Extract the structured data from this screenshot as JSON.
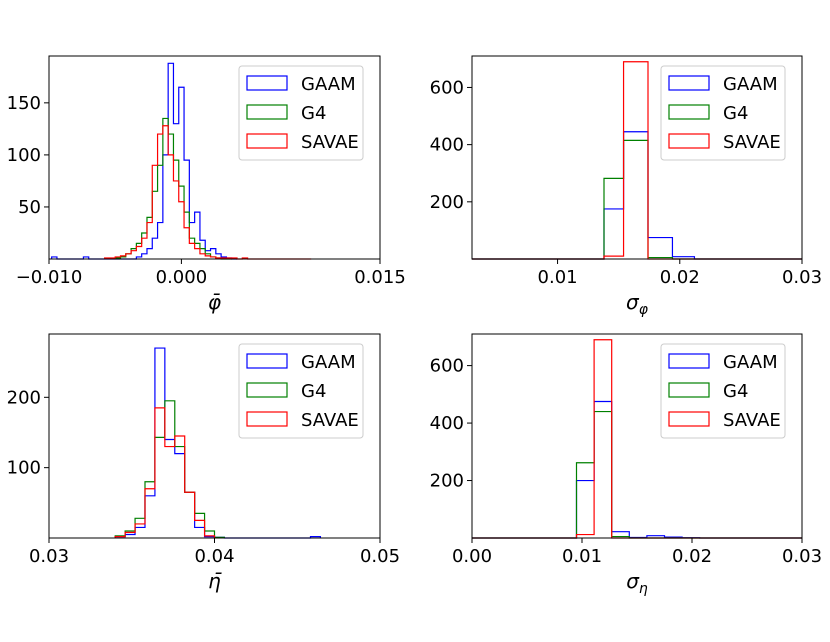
{
  "chart_data": [
    {
      "type": "histogram",
      "xlabel": "φ̄",
      "xlim": [
        -0.01,
        0.015
      ],
      "ylim": [
        0,
        195
      ],
      "xticks": [
        -0.01,
        0.0,
        0.015
      ],
      "xtick_labels": [
        "−0.010",
        "0.000",
        "0.015"
      ],
      "yticks": [
        50,
        100,
        150
      ],
      "ytick_labels": [
        "50",
        "100",
        "150"
      ],
      "legend_position": "top-right",
      "series": [
        {
          "name": "GAAM",
          "color": "#0000ff",
          "edges": [
            -0.0098,
            -0.0094,
            -0.009,
            -0.0086,
            -0.0082,
            -0.0078,
            -0.0074,
            -0.007,
            -0.0066,
            -0.0062,
            -0.0058,
            -0.0054,
            -0.005,
            -0.0046,
            -0.0042,
            -0.0038,
            -0.0034,
            -0.003,
            -0.0026,
            -0.0022,
            -0.0018,
            -0.0014,
            -0.001,
            -0.0006,
            -0.0002,
            0.0002,
            0.0006,
            0.001,
            0.0014,
            0.0018,
            0.0022,
            0.0026,
            0.003,
            0.0034,
            0.0038,
            0.0042
          ],
          "counts": [
            2,
            0,
            0,
            0,
            0,
            0,
            2,
            0,
            0,
            0,
            0,
            0,
            0,
            0,
            0,
            0,
            2,
            5,
            10,
            20,
            35,
            100,
            188,
            130,
            165,
            95,
            35,
            45,
            18,
            8,
            10,
            5,
            2,
            1,
            0
          ]
        },
        {
          "name": "G4",
          "color": "#008000",
          "edges": [
            -0.005,
            -0.0046,
            -0.0042,
            -0.0038,
            -0.0034,
            -0.003,
            -0.0026,
            -0.0022,
            -0.0018,
            -0.0014,
            -0.001,
            -0.0006,
            -0.0002,
            0.0002,
            0.0006,
            0.001,
            0.0014,
            0.0018,
            0.0022,
            0.0026,
            0.003,
            0.0034,
            0.0038
          ],
          "counts": [
            1,
            2,
            5,
            10,
            15,
            25,
            40,
            65,
            90,
            135,
            120,
            95,
            70,
            45,
            20,
            15,
            10,
            5,
            2,
            1,
            0,
            0
          ]
        },
        {
          "name": "SAVAE",
          "color": "#ff0000",
          "edges": [
            -0.0058,
            -0.0054,
            -0.005,
            -0.0046,
            -0.0042,
            -0.0038,
            -0.0034,
            -0.003,
            -0.0026,
            -0.0022,
            -0.0018,
            -0.0014,
            -0.001,
            -0.0006,
            -0.0002,
            0.0002,
            0.0006,
            0.001,
            0.0014,
            0.0018,
            0.0022,
            0.0026,
            0.003,
            0.0034,
            0.0038,
            0.0042,
            0.0046,
            0.005,
            0.0054,
            0.0058,
            0.0062,
            0.0066,
            0.007,
            0.0074,
            0.0078,
            0.0082,
            0.0086,
            0.009,
            0.0094,
            0.0098
          ],
          "counts": [
            1,
            1,
            2,
            3,
            5,
            8,
            12,
            20,
            35,
            90,
            120,
            128,
            100,
            75,
            55,
            30,
            15,
            10,
            5,
            3,
            2,
            1,
            1,
            1,
            1,
            0,
            1,
            0,
            0,
            0,
            0,
            0,
            0,
            0,
            0,
            0,
            0,
            0,
            0
          ]
        }
      ]
    },
    {
      "type": "histogram",
      "xlabel": "σφ",
      "xlabel_main": "σ",
      "xlabel_sub": "φ",
      "xlim": [
        0.003,
        0.03
      ],
      "ylim": [
        0,
        710
      ],
      "xticks": [
        0.01,
        0.02,
        0.03
      ],
      "xtick_labels": [
        "0.01",
        "0.02",
        "0.03"
      ],
      "yticks": [
        200,
        400,
        600
      ],
      "ytick_labels": [
        "200",
        "400",
        "600"
      ],
      "legend_position": "top-right",
      "series": [
        {
          "name": "GAAM",
          "color": "#0000ff",
          "edges": [
            0.003,
            0.0138,
            0.0154,
            0.0174,
            0.0194,
            0.0212,
            0.03
          ],
          "counts": [
            0,
            175,
            445,
            75,
            8,
            0
          ]
        },
        {
          "name": "G4",
          "color": "#008000",
          "edges": [
            0.003,
            0.0138,
            0.0154,
            0.0174,
            0.0194,
            0.03
          ],
          "counts": [
            0,
            282,
            415,
            5,
            0
          ]
        },
        {
          "name": "SAVAE",
          "color": "#ff0000",
          "edges": [
            0.003,
            0.0138,
            0.0154,
            0.0174,
            0.03
          ],
          "counts": [
            0,
            10,
            690,
            0
          ]
        }
      ]
    },
    {
      "type": "histogram",
      "xlabel": "η̄",
      "xlim": [
        0.03,
        0.05
      ],
      "ylim": [
        0,
        290
      ],
      "xticks": [
        0.03,
        0.04,
        0.05
      ],
      "xtick_labels": [
        "0.03",
        "0.04",
        "0.05"
      ],
      "yticks": [
        100,
        200
      ],
      "ytick_labels": [
        "100",
        "200"
      ],
      "legend_position": "top-right",
      "series": [
        {
          "name": "GAAM",
          "color": "#0000ff",
          "edges": [
            0.034,
            0.0346,
            0.0352,
            0.0358,
            0.0364,
            0.037,
            0.0376,
            0.0382,
            0.0388,
            0.0394,
            0.04,
            0.0406,
            0.0458,
            0.0464
          ],
          "counts": [
            2,
            5,
            15,
            60,
            270,
            140,
            120,
            65,
            15,
            2,
            1,
            0,
            2
          ]
        },
        {
          "name": "G4",
          "color": "#008000",
          "edges": [
            0.034,
            0.0346,
            0.0352,
            0.0358,
            0.0364,
            0.037,
            0.0376,
            0.0382,
            0.0388,
            0.0394,
            0.04,
            0.0406
          ],
          "counts": [
            3,
            10,
            28,
            80,
            143,
            195,
            130,
            65,
            35,
            10,
            1
          ]
        },
        {
          "name": "SAVAE",
          "color": "#ff0000",
          "edges": [
            0.034,
            0.0346,
            0.0352,
            0.0358,
            0.0364,
            0.037,
            0.0376,
            0.0382,
            0.0388,
            0.0394,
            0.04
          ],
          "counts": [
            2,
            8,
            20,
            70,
            185,
            130,
            145,
            65,
            25,
            3
          ]
        }
      ]
    },
    {
      "type": "histogram",
      "xlabel": "ση",
      "xlabel_main": "σ",
      "xlabel_sub": "η",
      "xlim": [
        0.0,
        0.03
      ],
      "ylim": [
        0,
        710
      ],
      "xticks": [
        0.0,
        0.01,
        0.02,
        0.03
      ],
      "xtick_labels": [
        "0.00",
        "0.01",
        "0.02",
        "0.03"
      ],
      "yticks": [
        200,
        400,
        600
      ],
      "ytick_labels": [
        "200",
        "400",
        "600"
      ],
      "legend_position": "top-right",
      "series": [
        {
          "name": "GAAM",
          "color": "#0000ff",
          "edges": [
            0.0,
            0.0095,
            0.0111,
            0.0127,
            0.0143,
            0.0159,
            0.0175,
            0.0191,
            0.0207,
            0.03
          ],
          "counts": [
            0,
            200,
            475,
            22,
            2,
            8,
            3,
            1,
            0
          ]
        },
        {
          "name": "G4",
          "color": "#008000",
          "edges": [
            0.0,
            0.0095,
            0.0111,
            0.0127,
            0.0143,
            0.03
          ],
          "counts": [
            0,
            262,
            440,
            5,
            0
          ]
        },
        {
          "name": "SAVAE",
          "color": "#ff0000",
          "edges": [
            0.0,
            0.0095,
            0.0111,
            0.0127,
            0.03
          ],
          "counts": [
            0,
            12,
            690,
            0
          ]
        }
      ]
    }
  ]
}
